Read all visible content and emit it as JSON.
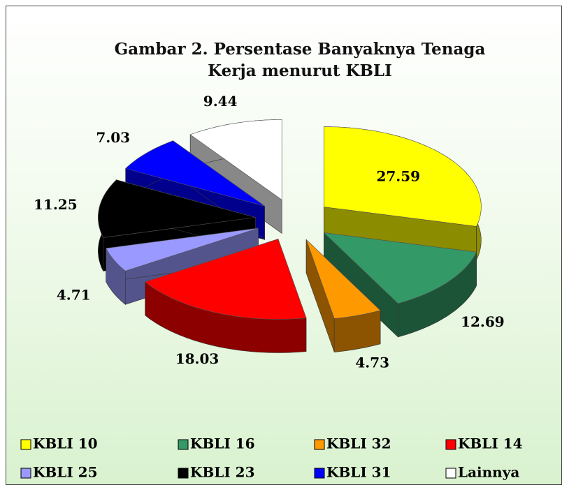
{
  "chart_data": {
    "type": "pie3d",
    "title": "Gambar 2. Persentase Banyaknya Tenaga Kerja menurut KBLI",
    "categories": [
      "KBLI 10",
      "KBLI 16",
      "KBLI 32",
      "KBLI 14",
      "KBLI 25",
      "KBLI 23",
      "KBLI 31",
      "Lainnya"
    ],
    "values": [
      27.59,
      12.69,
      4.73,
      18.03,
      4.71,
      11.25,
      7.03,
      9.44
    ],
    "colors": [
      "#ffff00",
      "#339966",
      "#ff9900",
      "#ff0000",
      "#9999ff",
      "#000000",
      "#0000ff",
      "#ffffff"
    ],
    "legend": "bottom"
  }
}
